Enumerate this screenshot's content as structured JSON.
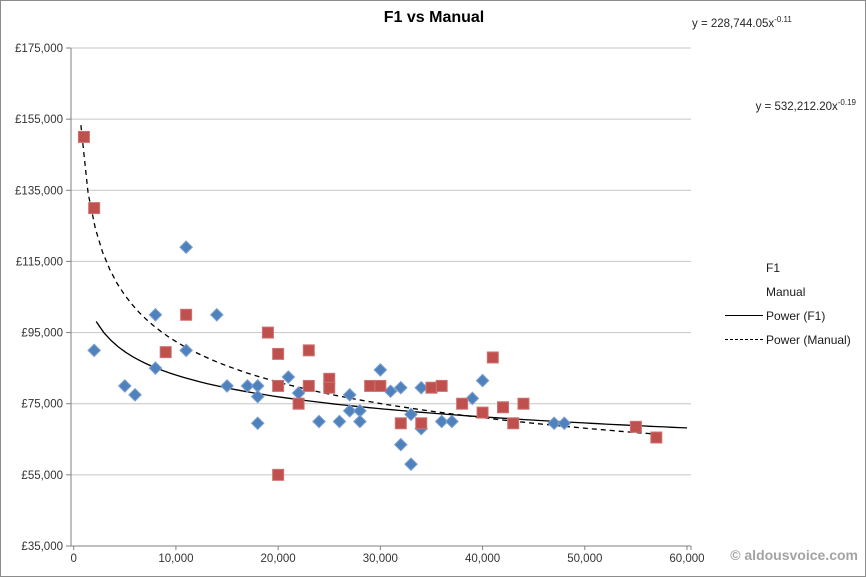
{
  "watermark": {
    "text": "© aldousvoice.com"
  },
  "colors": {
    "f1_marker": "#4F81BD",
    "f1_marker_edge": "#7CA2D1",
    "manual_marker": "#C0504D",
    "manual_marker_edge": "#CD7371",
    "trendline": "#000000",
    "gridline": "#C6C6C6",
    "axis_line": "#808080",
    "tick_label": "#333333",
    "watermark": "#A3A3A3"
  },
  "chart_data": {
    "type": "scatter",
    "title": "F1 vs Manual",
    "xlabel": "",
    "ylabel": "",
    "grid": "horizontal",
    "legend_position": "right",
    "x_axis": {
      "min": 0,
      "max": 60000,
      "tick_values": [
        0,
        10000,
        20000,
        30000,
        40000,
        50000,
        60000
      ],
      "tick_labels": [
        "0",
        "10,000",
        "20,000",
        "30,000",
        "40,000",
        "50,000",
        "60,000"
      ]
    },
    "y_axis": {
      "min": 35000,
      "max": 175000,
      "tick_values": [
        35000,
        55000,
        75000,
        95000,
        115000,
        135000,
        155000,
        175000
      ],
      "tick_labels": [
        "£35,000",
        "£55,000",
        "£75,000",
        "£95,000",
        "£115,000",
        "£135,000",
        "£155,000",
        "£175,000"
      ]
    },
    "series": [
      {
        "name": "F1",
        "marker": "diamond",
        "color": "#4F81BD",
        "points": [
          [
            2000,
            90000
          ],
          [
            5000,
            80000
          ],
          [
            6000,
            77500
          ],
          [
            8000,
            100000
          ],
          [
            8000,
            85000
          ],
          [
            11000,
            119000
          ],
          [
            11000,
            90000
          ],
          [
            14000,
            100000
          ],
          [
            15000,
            80000
          ],
          [
            17000,
            80000
          ],
          [
            18000,
            80000
          ],
          [
            18000,
            77000
          ],
          [
            18000,
            69500
          ],
          [
            21000,
            82500
          ],
          [
            22000,
            78000
          ],
          [
            24000,
            70000
          ],
          [
            26000,
            70000
          ],
          [
            27000,
            77500
          ],
          [
            27000,
            73000
          ],
          [
            28000,
            73000
          ],
          [
            28000,
            70000
          ],
          [
            30000,
            84500
          ],
          [
            31000,
            78500
          ],
          [
            32000,
            79500
          ],
          [
            32000,
            63500
          ],
          [
            33000,
            72000
          ],
          [
            33000,
            58000
          ],
          [
            34000,
            79500
          ],
          [
            34000,
            68000
          ],
          [
            36000,
            70000
          ],
          [
            37000,
            70000
          ],
          [
            39000,
            76500
          ],
          [
            40000,
            81500
          ],
          [
            47000,
            69500
          ],
          [
            48000,
            69500
          ]
        ]
      },
      {
        "name": "Manual",
        "marker": "square",
        "color": "#C0504D",
        "points": [
          [
            1000,
            150000
          ],
          [
            2000,
            130000
          ],
          [
            9000,
            89500
          ],
          [
            11000,
            100000
          ],
          [
            19000,
            95000
          ],
          [
            20000,
            89000
          ],
          [
            20000,
            80000
          ],
          [
            20000,
            55000
          ],
          [
            22000,
            75000
          ],
          [
            23000,
            90000
          ],
          [
            23000,
            80000
          ],
          [
            25000,
            82000
          ],
          [
            25000,
            79500
          ],
          [
            29000,
            80000
          ],
          [
            30000,
            80000
          ],
          [
            32000,
            69500
          ],
          [
            34000,
            69500
          ],
          [
            35000,
            79500
          ],
          [
            36000,
            80000
          ],
          [
            38000,
            75000
          ],
          [
            40000,
            72500
          ],
          [
            41000,
            88000
          ],
          [
            42000,
            74000
          ],
          [
            43000,
            69500
          ],
          [
            44000,
            75000
          ],
          [
            55000,
            68500
          ],
          [
            57000,
            65500
          ]
        ]
      }
    ],
    "trendlines": [
      {
        "name": "Power (F1)",
        "style": "solid",
        "color": "#000000",
        "coefficient": 228744.05,
        "exponent": -0.11,
        "x_range": [
          2200,
          60000
        ],
        "equation_base": "y = 228,744.05x",
        "equation_exp": "-0.11"
      },
      {
        "name": "Power (Manual)",
        "style": "dashed",
        "color": "#000000",
        "coefficient": 532212.2,
        "exponent": -0.19,
        "x_range": [
          700,
          57500
        ],
        "equation_base": "y = 532,212.20x",
        "equation_exp": "-0.19"
      }
    ],
    "legend": {
      "items": [
        {
          "label": "F1",
          "marker": "diamond"
        },
        {
          "label": "Manual",
          "marker": "square"
        },
        {
          "label": "Power (F1)",
          "marker": "solid-line"
        },
        {
          "label": "Power (Manual)",
          "marker": "dashed-line"
        }
      ]
    }
  }
}
